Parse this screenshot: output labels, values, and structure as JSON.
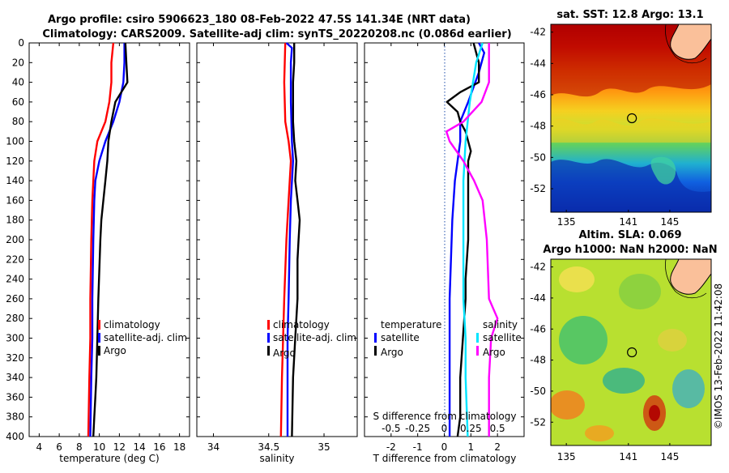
{
  "header": {
    "line1": "Argo profile: csiro 5906623_180 08-Feb-2022 47.5S 141.34E (NRT data)",
    "line2": "Climatology: CARS2009. Satellite-adj clim: synTS_20220208.nc (0.086d earlier)"
  },
  "colors": {
    "climatology": "#ff0000",
    "satellite": "#0000ff",
    "argo": "#000000",
    "s_satellite": "#00e5ff",
    "s_argo": "#ff00ff"
  },
  "chart_data": [
    {
      "type": "line",
      "panel": "temperature",
      "xlabel": "temperature (deg C)",
      "ylabel": "",
      "xlim": [
        3,
        19
      ],
      "ylim": [
        400,
        0
      ],
      "xticks": [
        4,
        6,
        8,
        10,
        12,
        14,
        16,
        18
      ],
      "yticks": [
        0,
        20,
        40,
        60,
        80,
        100,
        120,
        140,
        160,
        180,
        200,
        220,
        240,
        260,
        280,
        300,
        320,
        340,
        360,
        380,
        400
      ],
      "legend": [
        "climatology",
        "satellite-adj. clim",
        "Argo"
      ],
      "series": [
        {
          "name": "climatology",
          "color": "#ff0000",
          "depth": [
            0,
            20,
            40,
            60,
            80,
            100,
            120,
            140,
            160,
            200,
            260,
            300,
            340,
            400
          ],
          "value": [
            11.4,
            11.2,
            11.2,
            11.0,
            10.6,
            9.8,
            9.5,
            9.4,
            9.3,
            9.2,
            9.1,
            9.1,
            9.0,
            8.9
          ]
        },
        {
          "name": "satellite-adj. clim",
          "color": "#0000ff",
          "depth": [
            0,
            20,
            40,
            60,
            80,
            100,
            120,
            140,
            160,
            200,
            260,
            300,
            340,
            400
          ],
          "value": [
            12.5,
            12.5,
            12.4,
            12.0,
            11.4,
            10.6,
            10.0,
            9.6,
            9.5,
            9.4,
            9.3,
            9.3,
            9.2,
            9.1
          ]
        },
        {
          "name": "Argo",
          "color": "#000000",
          "depth": [
            0,
            20,
            40,
            50,
            60,
            80,
            100,
            120,
            140,
            160,
            180,
            200,
            260,
            300,
            340,
            360,
            380,
            400
          ],
          "value": [
            12.6,
            12.7,
            12.8,
            12.2,
            11.6,
            11.2,
            10.9,
            10.8,
            10.6,
            10.4,
            10.2,
            10.1,
            9.9,
            9.8,
            9.7,
            9.6,
            9.5,
            9.4
          ]
        }
      ]
    },
    {
      "type": "line",
      "panel": "salinity",
      "xlabel": "salinity",
      "ylabel": "",
      "xlim": [
        33.85,
        35.3
      ],
      "ylim": [
        400,
        0
      ],
      "xticks": [
        34,
        34.5,
        35
      ],
      "xticklabels": [
        "34",
        "34.5",
        "35"
      ],
      "legend": [
        "climatology",
        "satellite-adj. clim",
        "Argo"
      ],
      "series": [
        {
          "name": "climatology",
          "color": "#ff0000",
          "depth": [
            0,
            40,
            80,
            100,
            120,
            160,
            200,
            260,
            300,
            340,
            400
          ],
          "value": [
            34.65,
            34.64,
            34.65,
            34.68,
            34.7,
            34.68,
            34.66,
            34.64,
            34.63,
            34.62,
            34.61
          ]
        },
        {
          "name": "satellite-adj. clim",
          "color": "#0000ff",
          "depth": [
            0,
            5,
            20,
            60,
            100,
            120,
            160,
            200,
            260,
            300,
            340,
            400
          ],
          "value": [
            34.66,
            34.71,
            34.7,
            34.7,
            34.71,
            34.72,
            34.7,
            34.69,
            34.68,
            34.67,
            34.67,
            34.67
          ]
        },
        {
          "name": "Argo",
          "color": "#000000",
          "depth": [
            0,
            20,
            40,
            60,
            80,
            100,
            120,
            140,
            160,
            180,
            200,
            220,
            260,
            300,
            340,
            400
          ],
          "value": [
            34.73,
            34.73,
            34.72,
            34.72,
            34.72,
            34.73,
            34.75,
            34.74,
            34.76,
            34.78,
            34.77,
            34.76,
            34.76,
            34.74,
            34.72,
            34.71
          ]
        }
      ]
    },
    {
      "type": "line",
      "panel": "difference",
      "xlabel": "T difference from climatology",
      "x2label": "S difference from climatology",
      "xlim": [
        -3,
        3
      ],
      "ylim": [
        400,
        0
      ],
      "xticks": [
        -2,
        -1,
        0,
        1,
        2
      ],
      "x2ticks": [
        -0.5,
        -0.25,
        0,
        0.25,
        0.5
      ],
      "x2ticklabels": [
        "-0.5",
        "-0.25",
        "0",
        "0.25",
        "0.5"
      ],
      "legend_groups": [
        {
          "title": "temperature",
          "items": [
            "satellite",
            "Argo"
          ]
        },
        {
          "title": "salinity",
          "items": [
            "satellite",
            "Argo"
          ]
        }
      ],
      "series": [
        {
          "name": "temperature satellite",
          "color": "#0000ff",
          "depth": [
            0,
            10,
            30,
            60,
            80,
            100,
            120,
            140,
            180,
            260,
            300,
            340,
            400
          ],
          "value": [
            1.3,
            1.5,
            1.3,
            0.9,
            0.6,
            0.6,
            0.5,
            0.4,
            0.3,
            0.2,
            0.2,
            0.2,
            0.2
          ]
        },
        {
          "name": "temperature Argo",
          "color": "#000000",
          "depth": [
            0,
            20,
            40,
            50,
            60,
            70,
            80,
            90,
            100,
            110,
            120,
            140,
            160,
            200,
            240,
            260,
            300,
            340,
            360,
            380,
            400
          ],
          "value": [
            1.1,
            1.3,
            1.3,
            0.6,
            0.1,
            0.5,
            0.6,
            0.8,
            0.9,
            1.0,
            0.9,
            0.9,
            0.9,
            0.9,
            0.8,
            0.8,
            0.7,
            0.6,
            0.6,
            0.6,
            0.5
          ]
        },
        {
          "name": "salinity satellite",
          "color": "#00e5ff",
          "depth": [
            0,
            20,
            60,
            100,
            140,
            200,
            260,
            300,
            340,
            400
          ],
          "value": [
            0.36,
            0.3,
            0.24,
            0.2,
            0.18,
            0.18,
            0.18,
            0.2,
            0.2,
            0.22
          ]
        },
        {
          "name": "salinity Argo",
          "color": "#ff00ff",
          "depth": [
            0,
            20,
            40,
            60,
            80,
            90,
            100,
            120,
            140,
            160,
            200,
            260,
            280,
            300,
            340,
            400
          ],
          "value": [
            0.42,
            0.42,
            0.42,
            0.35,
            0.18,
            0.02,
            0.05,
            0.18,
            0.28,
            0.36,
            0.4,
            0.42,
            0.5,
            0.44,
            0.42,
            0.42
          ]
        }
      ]
    },
    {
      "type": "heatmap",
      "panel": "sst_map",
      "title": "sat. SST: 12.8 Argo: 13.1",
      "xlim": [
        133.5,
        149
      ],
      "ylim": [
        -53.5,
        -41.5
      ],
      "xticks": [
        135,
        141,
        145
      ],
      "xticklabels": [
        "135",
        "141",
        "145"
      ],
      "yticks": [
        -42,
        -44,
        -46,
        -48,
        -50,
        -52
      ],
      "argo_position": {
        "lon": 141.34,
        "lat": -47.5
      }
    },
    {
      "type": "heatmap",
      "panel": "sla_map",
      "title": "Altim. SLA: 0.069",
      "title2": "Argo h1000: NaN h2000: NaN",
      "xlim": [
        133.5,
        149
      ],
      "ylim": [
        -53.5,
        -41.5
      ],
      "xticks": [
        135,
        141,
        145
      ],
      "xticklabels": [
        "135",
        "141",
        "145"
      ],
      "yticks": [
        -42,
        -44,
        -46,
        -48,
        -50,
        -52
      ],
      "argo_position": {
        "lon": 141.34,
        "lat": -47.5
      }
    }
  ],
  "watermark": "©IMOS 13-Feb-2022 11:42:08"
}
